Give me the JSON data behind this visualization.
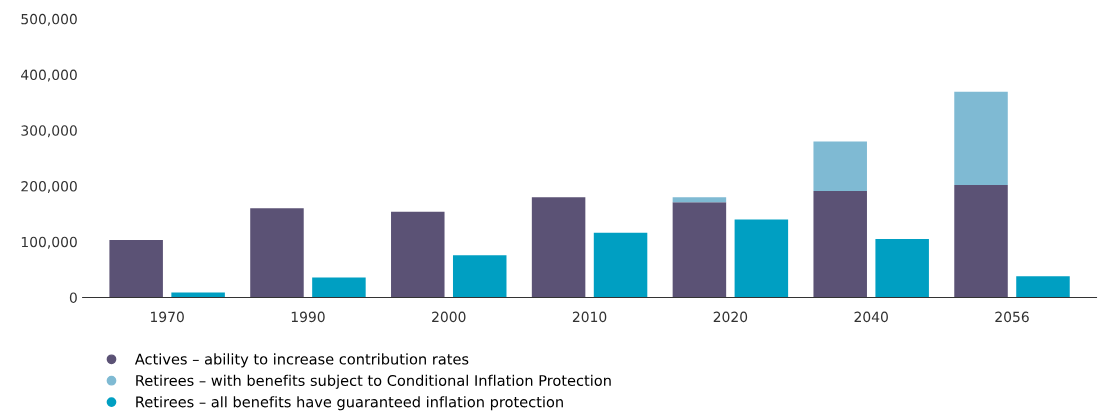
{
  "chart_data": {
    "type": "bar",
    "categories": [
      "1970",
      "1990",
      "2000",
      "2010",
      "2020",
      "2040",
      "2056"
    ],
    "series": [
      {
        "name": "Actives – ability to increase contribution rates",
        "color": "#5b5275",
        "values": [
          103000,
          160000,
          154000,
          180000,
          171000,
          191000,
          202000
        ]
      },
      {
        "name": "Retirees – with benefits subject to Conditional Inflation Protection",
        "color": "#7fbad3",
        "values": [
          null,
          null,
          null,
          null,
          9000,
          89000,
          167000
        ],
        "base": [
          null,
          null,
          null,
          null,
          171000,
          191000,
          202000
        ]
      },
      {
        "name": "Retirees – all benefits have guaranteed inflation protection",
        "color": "#009fc2",
        "values": [
          9000,
          36000,
          76000,
          116000,
          140000,
          105000,
          38000
        ]
      }
    ],
    "ylim": [
      0,
      500000
    ],
    "yticks": [
      {
        "value": 0,
        "label": "0"
      },
      {
        "value": 100000,
        "label": "100,000"
      },
      {
        "value": 200000,
        "label": "200,000"
      },
      {
        "value": 300000,
        "label": "300,000"
      },
      {
        "value": 400000,
        "label": "400,000"
      },
      {
        "value": 500000,
        "label": "500,000"
      }
    ],
    "grid": false,
    "legend": "bottom left",
    "marker": "circle"
  }
}
